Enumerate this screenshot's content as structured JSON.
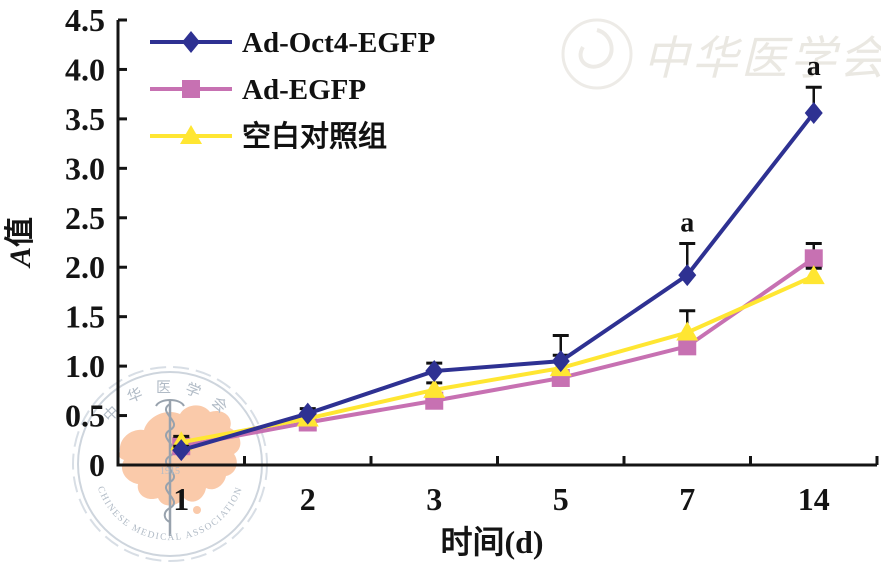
{
  "figure": {
    "background": "#ffffff",
    "axis_color": "#141414",
    "error_bar_color": "#111111"
  },
  "watermarks": {
    "top_right_text": "中华医学会",
    "top_right_color": "#e7e4de",
    "bottom_left": {
      "top_arc": "中华医学会",
      "bottom_arc": "CHINESE MEDICAL ASSOCIATION",
      "year": "1915",
      "ring_color": "#c9d1da",
      "text_color": "#a9b4c0",
      "map_color": "#f8ba90",
      "staff_color": "#8d99a5"
    }
  },
  "chart_data": {
    "type": "line",
    "title": "",
    "xlabel": "时间(d)",
    "ylabel": "A值",
    "ylabel_italic": "A",
    "ylabel_cjk": "值",
    "categories": [
      "1",
      "2",
      "3",
      "5",
      "7",
      "14"
    ],
    "ylim": [
      0,
      4.5
    ],
    "ytick_step": 0.5,
    "grid": false,
    "legend_position": "top-left",
    "series": [
      {
        "name": "Ad-Oct4-EGFP",
        "color": "#2e3192",
        "marker": "diamond",
        "values": [
          0.15,
          0.52,
          0.95,
          1.05,
          1.92,
          3.56
        ],
        "err_up": [
          0.04,
          0.05,
          0.08,
          0.26,
          0.32,
          0.26
        ],
        "annotations": [
          {
            "index": 4,
            "text": "a"
          },
          {
            "index": 5,
            "text": "a"
          }
        ]
      },
      {
        "name": "Ad-EGFP",
        "color": "#c771b2",
        "marker": "square",
        "values": [
          0.19,
          0.43,
          0.65,
          0.88,
          1.2,
          2.09
        ],
        "err_up": [
          0.03,
          0.04,
          0.04,
          0.06,
          0.08,
          0.15
        ],
        "annotations": []
      },
      {
        "name": "空白对照组",
        "color": "#ffe632",
        "marker": "triangle",
        "values": [
          0.23,
          0.47,
          0.76,
          0.98,
          1.34,
          1.91
        ],
        "err_up": [
          0.06,
          0.04,
          0.07,
          0.13,
          0.22,
          0.08
        ],
        "annotations": []
      }
    ]
  }
}
